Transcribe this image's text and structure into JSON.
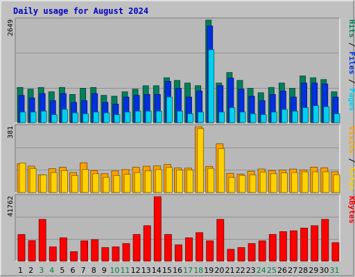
{
  "title": "Daily usage for August 2024",
  "colors": {
    "background": "#c0c0c0",
    "plot": "#b8b8b8",
    "title": "#0000c0",
    "grid": "#909090",
    "hits": "#00805a",
    "files": "#0030e0",
    "pages": "#00d0f0",
    "visits": "#ffa000",
    "sites": "#ffd000",
    "kbytes": "#ff0000",
    "weekend_label": "#008040",
    "weekday_label": "#000000"
  },
  "chart_data": [
    {
      "type": "bar",
      "title": "Daily usage for August 2024",
      "categories": [
        "1",
        "2",
        "3",
        "4",
        "5",
        "6",
        "7",
        "8",
        "9",
        "10",
        "11",
        "12",
        "13",
        "14",
        "15",
        "16",
        "17",
        "18",
        "19",
        "20",
        "21",
        "22",
        "23",
        "24",
        "25",
        "26",
        "27",
        "28",
        "29",
        "30",
        "31"
      ],
      "weekend_days": [
        "3",
        "4",
        "10",
        "11",
        "17",
        "18",
        "24",
        "25",
        "31"
      ],
      "ylabel_max": "2649",
      "ylim": [
        0,
        2649
      ],
      "legend": [
        "Pages",
        "Files",
        "Hits"
      ],
      "legend_separator": " / ",
      "legend_placement": "right",
      "series": [
        {
          "name": "Hits",
          "values": [
            908,
            863,
            908,
            795,
            908,
            727,
            886,
            908,
            704,
            682,
            795,
            863,
            952,
            952,
            1158,
            1090,
            1022,
            954,
            2649,
            1022,
            1294,
            1090,
            885,
            771,
            908,
            1022,
            885,
            1204,
            1158,
            1112,
            795
          ]
        },
        {
          "name": "Files",
          "values": [
            704,
            636,
            749,
            568,
            749,
            522,
            568,
            749,
            522,
            477,
            658,
            704,
            726,
            727,
            1067,
            885,
            658,
            817,
            2497,
            954,
            1149,
            863,
            680,
            568,
            727,
            817,
            658,
            1022,
            1022,
            999,
            658
          ]
        },
        {
          "name": "Pages",
          "values": [
            272,
            272,
            295,
            204,
            340,
            250,
            227,
            272,
            250,
            204,
            272,
            295,
            295,
            295,
            658,
            295,
            227,
            272,
            1883,
            272,
            385,
            272,
            227,
            204,
            272,
            340,
            295,
            385,
            436,
            408,
            227
          ]
        }
      ]
    },
    {
      "type": "bar",
      "categories": [
        "1",
        "2",
        "3",
        "4",
        "5",
        "6",
        "7",
        "8",
        "9",
        "10",
        "11",
        "12",
        "13",
        "14",
        "15",
        "16",
        "17",
        "18",
        "19",
        "20",
        "21",
        "22",
        "23",
        "24",
        "25",
        "26",
        "27",
        "28",
        "29",
        "30",
        "31"
      ],
      "ylabel_max": "381",
      "ylim": [
        0,
        381
      ],
      "legend": [
        "Sites",
        "Visits"
      ],
      "legend_separator": " / ",
      "legend_placement": "right",
      "series": [
        {
          "name": "Visits",
          "values": [
            167,
            153,
            102,
            138,
            146,
            116,
            172,
            127,
            109,
            125,
            133,
            146,
            152,
            154,
            162,
            142,
            141,
            381,
            151,
            282,
            111,
            107,
            123,
            136,
            127,
            130,
            136,
            131,
            147,
            143,
            121
          ]
        },
        {
          "name": "Sites",
          "values": [
            171,
            139,
            102,
            116,
            127,
            99,
            133,
            109,
            88,
            99,
            106,
            116,
            125,
            133,
            145,
            130,
            131,
            370,
            140,
            254,
            88,
            99,
            102,
            119,
            109,
            114,
            116,
            120,
            120,
            120,
            103
          ]
        }
      ]
    },
    {
      "type": "bar",
      "categories": [
        "1",
        "2",
        "3",
        "4",
        "5",
        "6",
        "7",
        "8",
        "9",
        "10",
        "11",
        "12",
        "13",
        "14",
        "15",
        "16",
        "17",
        "18",
        "19",
        "20",
        "21",
        "22",
        "23",
        "24",
        "25",
        "26",
        "27",
        "28",
        "29",
        "30",
        "31"
      ],
      "ylabel_max": "41762",
      "ylim": [
        0,
        41762
      ],
      "legend": [
        "KBytes"
      ],
      "legend_placement": "right",
      "series": [
        {
          "name": "KBytes",
          "values": [
            17237,
            13232,
            27042,
            9226,
            15087,
            6106,
            13125,
            13875,
            8762,
            9226,
            11375,
            17237,
            22928,
            41762,
            17237,
            10525,
            15087,
            18475,
            13125,
            27042,
            7625,
            8762,
            11375,
            13125,
            17237,
            19063,
            19638,
            21362,
            22928,
            27042,
            11903
          ]
        }
      ]
    }
  ]
}
